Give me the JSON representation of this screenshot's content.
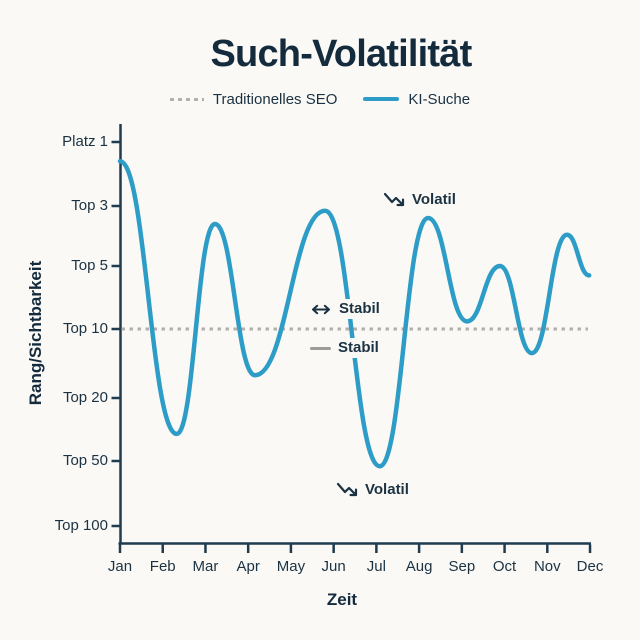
{
  "title": "Such-Volatilität",
  "legend": [
    {
      "label": "Traditionelles SEO",
      "swatch": "dashed-gray"
    },
    {
      "label": "KI-Suche",
      "swatch": "solid-blue"
    }
  ],
  "colors": {
    "accent_blue": "#2d9dc7",
    "dash_gray": "#b3b0ab",
    "text_navy": "#142b3d",
    "stabil_line_gray": "#9b9b97",
    "background": "#faf9f6"
  },
  "chart_data": {
    "type": "line",
    "title": "Such-Volatilität",
    "xlabel": "Zeit",
    "ylabel": "Rang/Sichtbarkeit",
    "x_ticklabels": [
      "Jan",
      "Feb",
      "Mar",
      "Apr",
      "May",
      "Jun",
      "Jul",
      "Aug",
      "Sep",
      "Oct",
      "Nov",
      "Dec"
    ],
    "y_ticklabels": [
      "Platz 1",
      "Top 3",
      "Top 5",
      "Top 10",
      "Top 20",
      "Top 50",
      "Top 100"
    ],
    "grid": false,
    "legend_position": "top",
    "series": [
      {
        "name": "Traditionelles SEO",
        "style": "dashed",
        "color": "#b3b0ab",
        "constant_at_rank": "Top 10"
      },
      {
        "name": "KI-Suche",
        "style": "solid",
        "color": "#2d9dc7",
        "points_unit": "[month_index 0=Jan..11=Dec, rank_tick 0=Platz1..6=Top100]",
        "points": [
          [
            0.0,
            0.3
          ],
          [
            1.33,
            4.57
          ],
          [
            2.22,
            1.3
          ],
          [
            3.16,
            3.67
          ],
          [
            4.8,
            1.08
          ],
          [
            6.08,
            5.08
          ],
          [
            7.21,
            1.2
          ],
          [
            8.12,
            2.88
          ],
          [
            8.89,
            2.0
          ],
          [
            9.64,
            3.35
          ],
          [
            10.46,
            1.48
          ],
          [
            10.98,
            2.15
          ]
        ]
      }
    ],
    "annotations": [
      {
        "text": "Volatil",
        "icon": "trending-down"
      },
      {
        "text": "Stabil",
        "icon": "arrow-left-right"
      },
      {
        "text": "Stabil",
        "icon": "gray-line"
      },
      {
        "text": "Volatil",
        "icon": "trending-down"
      }
    ]
  }
}
